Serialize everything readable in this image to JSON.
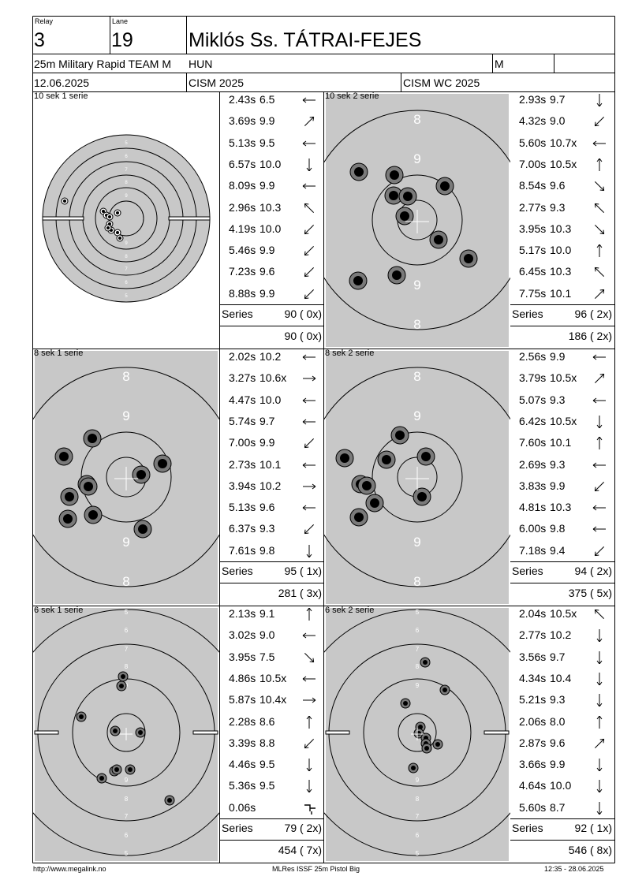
{
  "header": {
    "relay_label": "Relay",
    "relay": "3",
    "lane_label": "Lane",
    "lane": "19",
    "name": "Miklós Ss. TÁTRAI-FEJES",
    "event": "25m Military Rapid TEAM M",
    "nation": "HUN",
    "gender": "M",
    "date": "12.06.2025",
    "competition": "CISM 2025",
    "match": "CISM WC 2025"
  },
  "series_label": "Series",
  "series": [
    {
      "title": "10 sek 1 serie",
      "zoom": "overview",
      "total": "90 ( 0x)",
      "cumulative": "90 ( 0x)",
      "shots": [
        {
          "time": "2.43s",
          "value": "6.5",
          "dir": "w"
        },
        {
          "time": "3.69s",
          "value": "9.9",
          "dir": "ne"
        },
        {
          "time": "5.13s",
          "value": "9.5",
          "dir": "w"
        },
        {
          "time": "6.57s",
          "value": "10.0",
          "dir": "s"
        },
        {
          "time": "8.09s",
          "value": "9.9",
          "dir": "w"
        },
        {
          "time": "2.96s",
          "value": "10.3",
          "dir": "nw"
        },
        {
          "time": "4.19s",
          "value": "10.0",
          "dir": "sw"
        },
        {
          "time": "5.46s",
          "value": "9.9",
          "dir": "sw"
        },
        {
          "time": "7.23s",
          "value": "9.6",
          "dir": "sw"
        },
        {
          "time": "8.88s",
          "value": "9.9",
          "dir": "sw"
        }
      ]
    },
    {
      "title": "10 sek 2 serie",
      "zoom": "zoomed",
      "total": "96 ( 2x)",
      "cumulative": "186 ( 2x)",
      "shots": [
        {
          "time": "2.93s",
          "value": "9.7",
          "dir": "s"
        },
        {
          "time": "4.32s",
          "value": "9.0",
          "dir": "sw"
        },
        {
          "time": "5.60s",
          "value": "10.7x",
          "dir": "w"
        },
        {
          "time": "7.00s",
          "value": "10.5x",
          "dir": "n"
        },
        {
          "time": "8.54s",
          "value": "9.6",
          "dir": "se"
        },
        {
          "time": "2.77s",
          "value": "9.3",
          "dir": "nw"
        },
        {
          "time": "3.95s",
          "value": "10.3",
          "dir": "se"
        },
        {
          "time": "5.17s",
          "value": "10.0",
          "dir": "n"
        },
        {
          "time": "6.45s",
          "value": "10.3",
          "dir": "nw"
        },
        {
          "time": "7.75s",
          "value": "10.1",
          "dir": "ne"
        }
      ]
    },
    {
      "title": "8 sek 1 serie",
      "zoom": "zoomed",
      "total": "95 ( 1x)",
      "cumulative": "281 ( 3x)",
      "shots": [
        {
          "time": "2.02s",
          "value": "10.2",
          "dir": "w"
        },
        {
          "time": "3.27s",
          "value": "10.6x",
          "dir": "e"
        },
        {
          "time": "4.47s",
          "value": "10.0",
          "dir": "w"
        },
        {
          "time": "5.74s",
          "value": "9.7",
          "dir": "w"
        },
        {
          "time": "7.00s",
          "value": "9.9",
          "dir": "sw"
        },
        {
          "time": "2.73s",
          "value": "10.1",
          "dir": "w"
        },
        {
          "time": "3.94s",
          "value": "10.2",
          "dir": "e"
        },
        {
          "time": "5.13s",
          "value": "9.6",
          "dir": "w"
        },
        {
          "time": "6.37s",
          "value": "9.3",
          "dir": "sw"
        },
        {
          "time": "7.61s",
          "value": "9.8",
          "dir": "s"
        }
      ]
    },
    {
      "title": "8 sek 2 serie",
      "zoom": "zoomed",
      "total": "94 ( 2x)",
      "cumulative": "375 ( 5x)",
      "shots": [
        {
          "time": "2.56s",
          "value": "9.9",
          "dir": "w"
        },
        {
          "time": "3.79s",
          "value": "10.5x",
          "dir": "ne"
        },
        {
          "time": "5.07s",
          "value": "9.3",
          "dir": "w"
        },
        {
          "time": "6.42s",
          "value": "10.5x",
          "dir": "s"
        },
        {
          "time": "7.60s",
          "value": "10.1",
          "dir": "n"
        },
        {
          "time": "2.69s",
          "value": "9.3",
          "dir": "w"
        },
        {
          "time": "3.83s",
          "value": "9.9",
          "dir": "sw"
        },
        {
          "time": "4.81s",
          "value": "10.3",
          "dir": "w"
        },
        {
          "time": "6.00s",
          "value": "9.8",
          "dir": "w"
        },
        {
          "time": "7.18s",
          "value": "9.4",
          "dir": "sw"
        }
      ]
    },
    {
      "title": "6 sek 1 serie",
      "zoom": "mid",
      "total": "79 ( 2x)",
      "cumulative": "454 ( 7x)",
      "shots": [
        {
          "time": "2.13s",
          "value": "9.1",
          "dir": "n"
        },
        {
          "time": "3.02s",
          "value": "9.0",
          "dir": "w"
        },
        {
          "time": "3.95s",
          "value": "7.5",
          "dir": "se"
        },
        {
          "time": "4.86s",
          "value": "10.5x",
          "dir": "w"
        },
        {
          "time": "5.87s",
          "value": "10.4x",
          "dir": "e"
        },
        {
          "time": "2.28s",
          "value": "8.6",
          "dir": "n"
        },
        {
          "time": "3.39s",
          "value": "8.8",
          "dir": "sw"
        },
        {
          "time": "4.46s",
          "value": "9.5",
          "dir": "s"
        },
        {
          "time": "5.36s",
          "value": "9.5",
          "dir": "s"
        },
        {
          "time": "0.06s",
          "value": "",
          "dir": "cross"
        }
      ]
    },
    {
      "title": "6 sek 2 serie",
      "zoom": "mid",
      "total": "92 ( 1x)",
      "cumulative": "546 ( 8x)",
      "shots": [
        {
          "time": "2.04s",
          "value": "10.5x",
          "dir": "nw"
        },
        {
          "time": "2.77s",
          "value": "10.2",
          "dir": "s"
        },
        {
          "time": "3.56s",
          "value": "9.7",
          "dir": "s"
        },
        {
          "time": "4.34s",
          "value": "10.4",
          "dir": "s"
        },
        {
          "time": "5.21s",
          "value": "9.3",
          "dir": "s"
        },
        {
          "time": "2.06s",
          "value": "8.0",
          "dir": "n"
        },
        {
          "time": "2.87s",
          "value": "9.6",
          "dir": "ne"
        },
        {
          "time": "3.66s",
          "value": "9.9",
          "dir": "s"
        },
        {
          "time": "4.64s",
          "value": "10.0",
          "dir": "s"
        },
        {
          "time": "5.60s",
          "value": "8.7",
          "dir": "s"
        }
      ]
    }
  ],
  "footer": {
    "left": "http://www.megalink.no",
    "center": "MLRes ISSF 25m Pistol Big",
    "right": "12:35 - 28.06.2025"
  }
}
